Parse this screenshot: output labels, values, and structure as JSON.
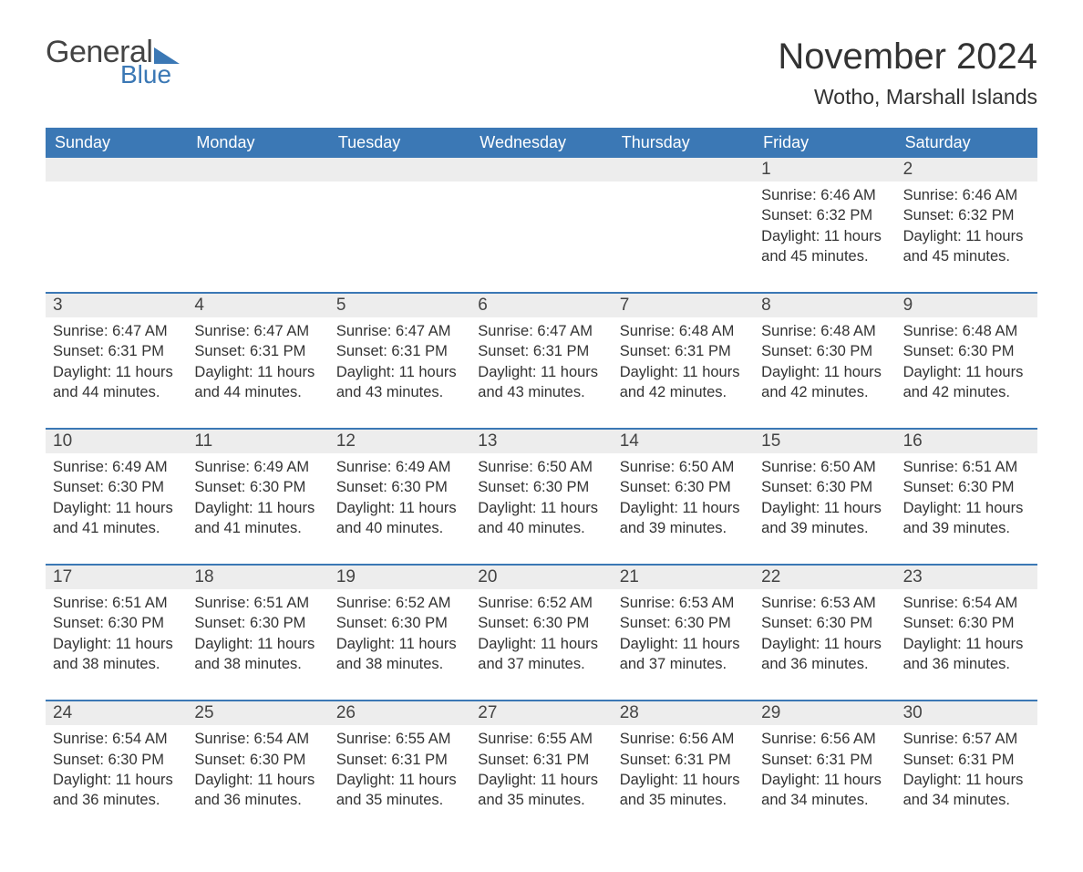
{
  "logo": {
    "text1": "General",
    "text2": "Blue"
  },
  "title": "November 2024",
  "location": "Wotho, Marshall Islands",
  "colors": {
    "accent": "#3b78b5",
    "header_bg": "#3b78b5",
    "header_text": "#ffffff",
    "daynum_bg": "#ededed",
    "text": "#333333",
    "background": "#ffffff"
  },
  "weekdays": [
    "Sunday",
    "Monday",
    "Tuesday",
    "Wednesday",
    "Thursday",
    "Friday",
    "Saturday"
  ],
  "weeks": [
    [
      {
        "empty": true
      },
      {
        "empty": true
      },
      {
        "empty": true
      },
      {
        "empty": true
      },
      {
        "empty": true
      },
      {
        "day": "1",
        "sunrise": "Sunrise: 6:46 AM",
        "sunset": "Sunset: 6:32 PM",
        "daylight1": "Daylight: 11 hours",
        "daylight2": "and 45 minutes."
      },
      {
        "day": "2",
        "sunrise": "Sunrise: 6:46 AM",
        "sunset": "Sunset: 6:32 PM",
        "daylight1": "Daylight: 11 hours",
        "daylight2": "and 45 minutes."
      }
    ],
    [
      {
        "day": "3",
        "sunrise": "Sunrise: 6:47 AM",
        "sunset": "Sunset: 6:31 PM",
        "daylight1": "Daylight: 11 hours",
        "daylight2": "and 44 minutes."
      },
      {
        "day": "4",
        "sunrise": "Sunrise: 6:47 AM",
        "sunset": "Sunset: 6:31 PM",
        "daylight1": "Daylight: 11 hours",
        "daylight2": "and 44 minutes."
      },
      {
        "day": "5",
        "sunrise": "Sunrise: 6:47 AM",
        "sunset": "Sunset: 6:31 PM",
        "daylight1": "Daylight: 11 hours",
        "daylight2": "and 43 minutes."
      },
      {
        "day": "6",
        "sunrise": "Sunrise: 6:47 AM",
        "sunset": "Sunset: 6:31 PM",
        "daylight1": "Daylight: 11 hours",
        "daylight2": "and 43 minutes."
      },
      {
        "day": "7",
        "sunrise": "Sunrise: 6:48 AM",
        "sunset": "Sunset: 6:31 PM",
        "daylight1": "Daylight: 11 hours",
        "daylight2": "and 42 minutes."
      },
      {
        "day": "8",
        "sunrise": "Sunrise: 6:48 AM",
        "sunset": "Sunset: 6:30 PM",
        "daylight1": "Daylight: 11 hours",
        "daylight2": "and 42 minutes."
      },
      {
        "day": "9",
        "sunrise": "Sunrise: 6:48 AM",
        "sunset": "Sunset: 6:30 PM",
        "daylight1": "Daylight: 11 hours",
        "daylight2": "and 42 minutes."
      }
    ],
    [
      {
        "day": "10",
        "sunrise": "Sunrise: 6:49 AM",
        "sunset": "Sunset: 6:30 PM",
        "daylight1": "Daylight: 11 hours",
        "daylight2": "and 41 minutes."
      },
      {
        "day": "11",
        "sunrise": "Sunrise: 6:49 AM",
        "sunset": "Sunset: 6:30 PM",
        "daylight1": "Daylight: 11 hours",
        "daylight2": "and 41 minutes."
      },
      {
        "day": "12",
        "sunrise": "Sunrise: 6:49 AM",
        "sunset": "Sunset: 6:30 PM",
        "daylight1": "Daylight: 11 hours",
        "daylight2": "and 40 minutes."
      },
      {
        "day": "13",
        "sunrise": "Sunrise: 6:50 AM",
        "sunset": "Sunset: 6:30 PM",
        "daylight1": "Daylight: 11 hours",
        "daylight2": "and 40 minutes."
      },
      {
        "day": "14",
        "sunrise": "Sunrise: 6:50 AM",
        "sunset": "Sunset: 6:30 PM",
        "daylight1": "Daylight: 11 hours",
        "daylight2": "and 39 minutes."
      },
      {
        "day": "15",
        "sunrise": "Sunrise: 6:50 AM",
        "sunset": "Sunset: 6:30 PM",
        "daylight1": "Daylight: 11 hours",
        "daylight2": "and 39 minutes."
      },
      {
        "day": "16",
        "sunrise": "Sunrise: 6:51 AM",
        "sunset": "Sunset: 6:30 PM",
        "daylight1": "Daylight: 11 hours",
        "daylight2": "and 39 minutes."
      }
    ],
    [
      {
        "day": "17",
        "sunrise": "Sunrise: 6:51 AM",
        "sunset": "Sunset: 6:30 PM",
        "daylight1": "Daylight: 11 hours",
        "daylight2": "and 38 minutes."
      },
      {
        "day": "18",
        "sunrise": "Sunrise: 6:51 AM",
        "sunset": "Sunset: 6:30 PM",
        "daylight1": "Daylight: 11 hours",
        "daylight2": "and 38 minutes."
      },
      {
        "day": "19",
        "sunrise": "Sunrise: 6:52 AM",
        "sunset": "Sunset: 6:30 PM",
        "daylight1": "Daylight: 11 hours",
        "daylight2": "and 38 minutes."
      },
      {
        "day": "20",
        "sunrise": "Sunrise: 6:52 AM",
        "sunset": "Sunset: 6:30 PM",
        "daylight1": "Daylight: 11 hours",
        "daylight2": "and 37 minutes."
      },
      {
        "day": "21",
        "sunrise": "Sunrise: 6:53 AM",
        "sunset": "Sunset: 6:30 PM",
        "daylight1": "Daylight: 11 hours",
        "daylight2": "and 37 minutes."
      },
      {
        "day": "22",
        "sunrise": "Sunrise: 6:53 AM",
        "sunset": "Sunset: 6:30 PM",
        "daylight1": "Daylight: 11 hours",
        "daylight2": "and 36 minutes."
      },
      {
        "day": "23",
        "sunrise": "Sunrise: 6:54 AM",
        "sunset": "Sunset: 6:30 PM",
        "daylight1": "Daylight: 11 hours",
        "daylight2": "and 36 minutes."
      }
    ],
    [
      {
        "day": "24",
        "sunrise": "Sunrise: 6:54 AM",
        "sunset": "Sunset: 6:30 PM",
        "daylight1": "Daylight: 11 hours",
        "daylight2": "and 36 minutes."
      },
      {
        "day": "25",
        "sunrise": "Sunrise: 6:54 AM",
        "sunset": "Sunset: 6:30 PM",
        "daylight1": "Daylight: 11 hours",
        "daylight2": "and 36 minutes."
      },
      {
        "day": "26",
        "sunrise": "Sunrise: 6:55 AM",
        "sunset": "Sunset: 6:31 PM",
        "daylight1": "Daylight: 11 hours",
        "daylight2": "and 35 minutes."
      },
      {
        "day": "27",
        "sunrise": "Sunrise: 6:55 AM",
        "sunset": "Sunset: 6:31 PM",
        "daylight1": "Daylight: 11 hours",
        "daylight2": "and 35 minutes."
      },
      {
        "day": "28",
        "sunrise": "Sunrise: 6:56 AM",
        "sunset": "Sunset: 6:31 PM",
        "daylight1": "Daylight: 11 hours",
        "daylight2": "and 35 minutes."
      },
      {
        "day": "29",
        "sunrise": "Sunrise: 6:56 AM",
        "sunset": "Sunset: 6:31 PM",
        "daylight1": "Daylight: 11 hours",
        "daylight2": "and 34 minutes."
      },
      {
        "day": "30",
        "sunrise": "Sunrise: 6:57 AM",
        "sunset": "Sunset: 6:31 PM",
        "daylight1": "Daylight: 11 hours",
        "daylight2": "and 34 minutes."
      }
    ]
  ]
}
